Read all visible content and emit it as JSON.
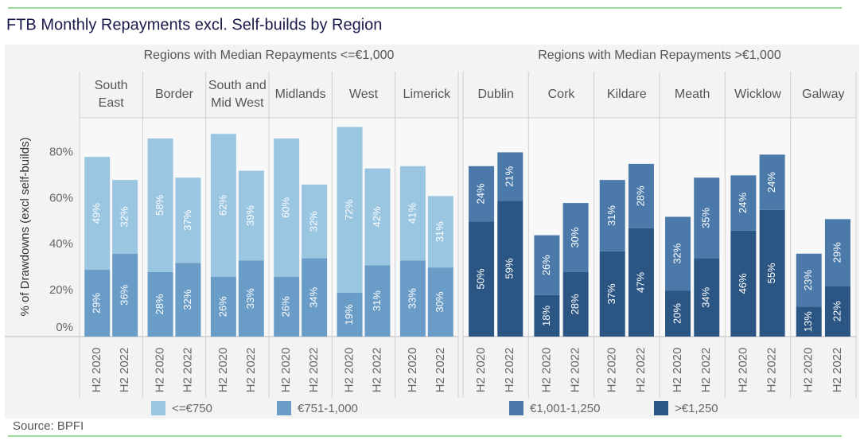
{
  "chart_data": {
    "type": "stacked-bar",
    "title": "FTB Monthly Repayments excl. Self-builds by Region",
    "y_label": "% of Drawdowns (excl self-builds)",
    "source": "Source: BPFI",
    "categories": [
      "H2 2020",
      "H2 2022"
    ],
    "groups": [
      {
        "title": "Regions with Median Repayments <=€1,000",
        "regions": [
          "South\nEast",
          "Border",
          "South and\nMid West",
          "Midlands",
          "West",
          "Limerick"
        ]
      },
      {
        "title": "Regions with Median Repayments >€1,000",
        "regions": [
          "Dublin",
          "Cork",
          "Kildare",
          "Meath",
          "Wicklow",
          "Galway"
        ]
      }
    ],
    "ylim": [
      0,
      95
    ],
    "yticks": [
      {
        "value": 0,
        "label": "0%"
      },
      {
        "value": 20,
        "label": "20%"
      },
      {
        "value": 40,
        "label": "40%"
      },
      {
        "value": 60,
        "label": "60%"
      },
      {
        "value": 80,
        "label": "80%"
      }
    ],
    "series": [
      {
        "name": "<=€750",
        "color": "#9ac6e2",
        "group": 0,
        "values": [
          [
            49,
            32
          ],
          [
            58,
            37
          ],
          [
            62,
            39
          ],
          [
            60,
            32
          ],
          [
            72,
            42
          ],
          [
            41,
            31
          ]
        ],
        "value_labels": [
          [
            "49%",
            "32%"
          ],
          [
            "58%",
            "37%"
          ],
          [
            "62%",
            "39%"
          ],
          [
            "60%",
            "32%"
          ],
          [
            "72%",
            "42%"
          ],
          [
            "41%",
            "31%"
          ]
        ]
      },
      {
        "name": "€751-1,000",
        "color": "#6a9cc8",
        "group": 0,
        "values": [
          [
            29,
            36
          ],
          [
            28,
            32
          ],
          [
            26,
            33
          ],
          [
            26,
            34
          ],
          [
            19,
            31
          ],
          [
            33,
            30
          ]
        ],
        "value_labels": [
          [
            "29%",
            "36%"
          ],
          [
            "28%",
            "32%"
          ],
          [
            "26%",
            "33%"
          ],
          [
            "26%",
            "34%"
          ],
          [
            "19%",
            "31%"
          ],
          [
            "33%",
            "30%"
          ]
        ]
      },
      {
        "name": "€1,001-1,250",
        "color": "#4a79aa",
        "group": 1,
        "values": [
          [
            24,
            21
          ],
          [
            26,
            30
          ],
          [
            31,
            28
          ],
          [
            32,
            35
          ],
          [
            24,
            24
          ],
          [
            23,
            29
          ]
        ],
        "value_labels": [
          [
            "24%",
            "21%"
          ],
          [
            "26%",
            "30%"
          ],
          [
            "31%",
            "28%"
          ],
          [
            "32%",
            "35%"
          ],
          [
            "24%",
            "24%"
          ],
          [
            "23%",
            "29%"
          ]
        ]
      },
      {
        "name": ">€1,250",
        "color": "#2b5583",
        "group": 1,
        "values": [
          [
            50,
            59
          ],
          [
            18,
            28
          ],
          [
            37,
            47
          ],
          [
            20,
            34
          ],
          [
            46,
            55
          ],
          [
            13,
            22
          ]
        ],
        "value_labels": [
          [
            "50%",
            "59%"
          ],
          [
            "18%",
            "28%"
          ],
          [
            "37%",
            "47%"
          ],
          [
            "20%",
            "34%"
          ],
          [
            "46%",
            "55%"
          ],
          [
            "13%",
            "22%"
          ]
        ]
      }
    ]
  }
}
